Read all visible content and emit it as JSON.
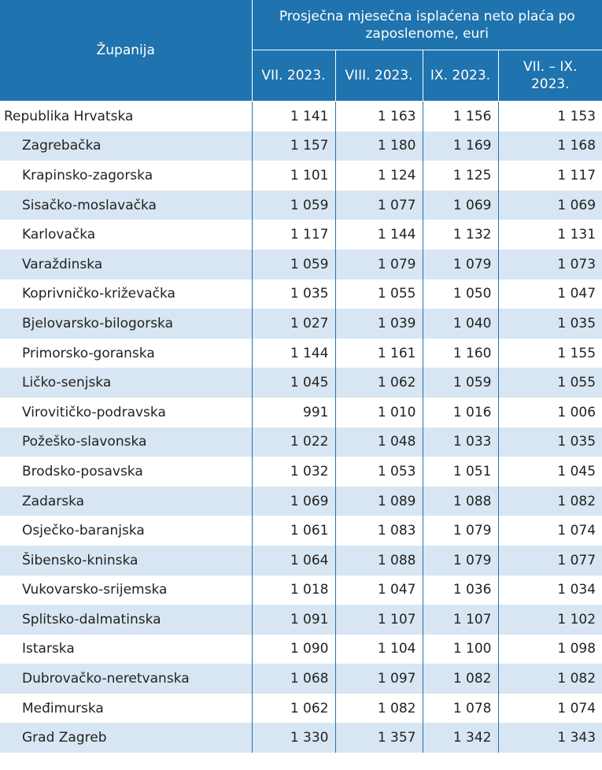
{
  "header": {
    "county": "Županija",
    "group": "Prosječna mjesečna isplaćena neto plaća po zaposlenome, euri",
    "periods": [
      "VII. 2023.",
      "VIII. 2023.",
      "IX. 2023.",
      "VII. – IX. 2023."
    ]
  },
  "rows": [
    {
      "name": "Republika Hrvatska",
      "values": [
        "1 141",
        "1 163",
        "1 156",
        "1 153"
      ]
    },
    {
      "name": "Zagrebačka",
      "values": [
        "1 157",
        "1 180",
        "1 169",
        "1 168"
      ]
    },
    {
      "name": "Krapinsko-zagorska",
      "values": [
        "1 101",
        "1 124",
        "1 125",
        "1 117"
      ]
    },
    {
      "name": "Sisačko-moslavačka",
      "values": [
        "1 059",
        "1 077",
        "1 069",
        "1 069"
      ]
    },
    {
      "name": "Karlovačka",
      "values": [
        "1 117",
        "1 144",
        "1 132",
        "1 131"
      ]
    },
    {
      "name": "Varaždinska",
      "values": [
        "1 059",
        "1 079",
        "1 079",
        "1 073"
      ]
    },
    {
      "name": "Koprivničko-križevačka",
      "values": [
        "1 035",
        "1 055",
        "1 050",
        "1 047"
      ]
    },
    {
      "name": "Bjelovarsko-bilogorska",
      "values": [
        "1 027",
        "1 039",
        "1 040",
        "1 035"
      ]
    },
    {
      "name": "Primorsko-goranska",
      "values": [
        "1 144",
        "1 161",
        "1 160",
        "1 155"
      ]
    },
    {
      "name": "Ličko-senjska",
      "values": [
        "1 045",
        "1 062",
        "1 059",
        "1 055"
      ]
    },
    {
      "name": "Virovitičko-podravska",
      "values": [
        "991",
        "1 010",
        "1 016",
        "1 006"
      ]
    },
    {
      "name": "Požeško-slavonska",
      "values": [
        "1 022",
        "1 048",
        "1 033",
        "1 035"
      ]
    },
    {
      "name": "Brodsko-posavska",
      "values": [
        "1 032",
        "1 053",
        "1 051",
        "1 045"
      ]
    },
    {
      "name": "Zadarska",
      "values": [
        "1 069",
        "1 089",
        "1 088",
        "1 082"
      ]
    },
    {
      "name": "Osječko-baranjska",
      "values": [
        "1 061",
        "1 083",
        "1 079",
        "1 074"
      ]
    },
    {
      "name": "Šibensko-kninska",
      "values": [
        "1 064",
        "1 088",
        "1 079",
        "1 077"
      ]
    },
    {
      "name": "Vukovarsko-srijemska",
      "values": [
        "1 018",
        "1 047",
        "1 036",
        "1 034"
      ]
    },
    {
      "name": "Splitsko-dalmatinska",
      "values": [
        "1 091",
        "1 107",
        "1 107",
        "1 102"
      ]
    },
    {
      "name": "Istarska",
      "values": [
        "1 090",
        "1 104",
        "1 100",
        "1 098"
      ]
    },
    {
      "name": "Dubrovačko-neretvanska",
      "values": [
        "1 068",
        "1 097",
        "1 082",
        "1 082"
      ]
    },
    {
      "name": "Međimurska",
      "values": [
        "1 062",
        "1 082",
        "1 078",
        "1 074"
      ]
    },
    {
      "name": "Grad Zagreb",
      "values": [
        "1 330",
        "1 357",
        "1 342",
        "1 343"
      ]
    }
  ],
  "colors": {
    "header_bg": "#1f73ae",
    "stripe": "#d8e6f3",
    "text": "#222222"
  }
}
